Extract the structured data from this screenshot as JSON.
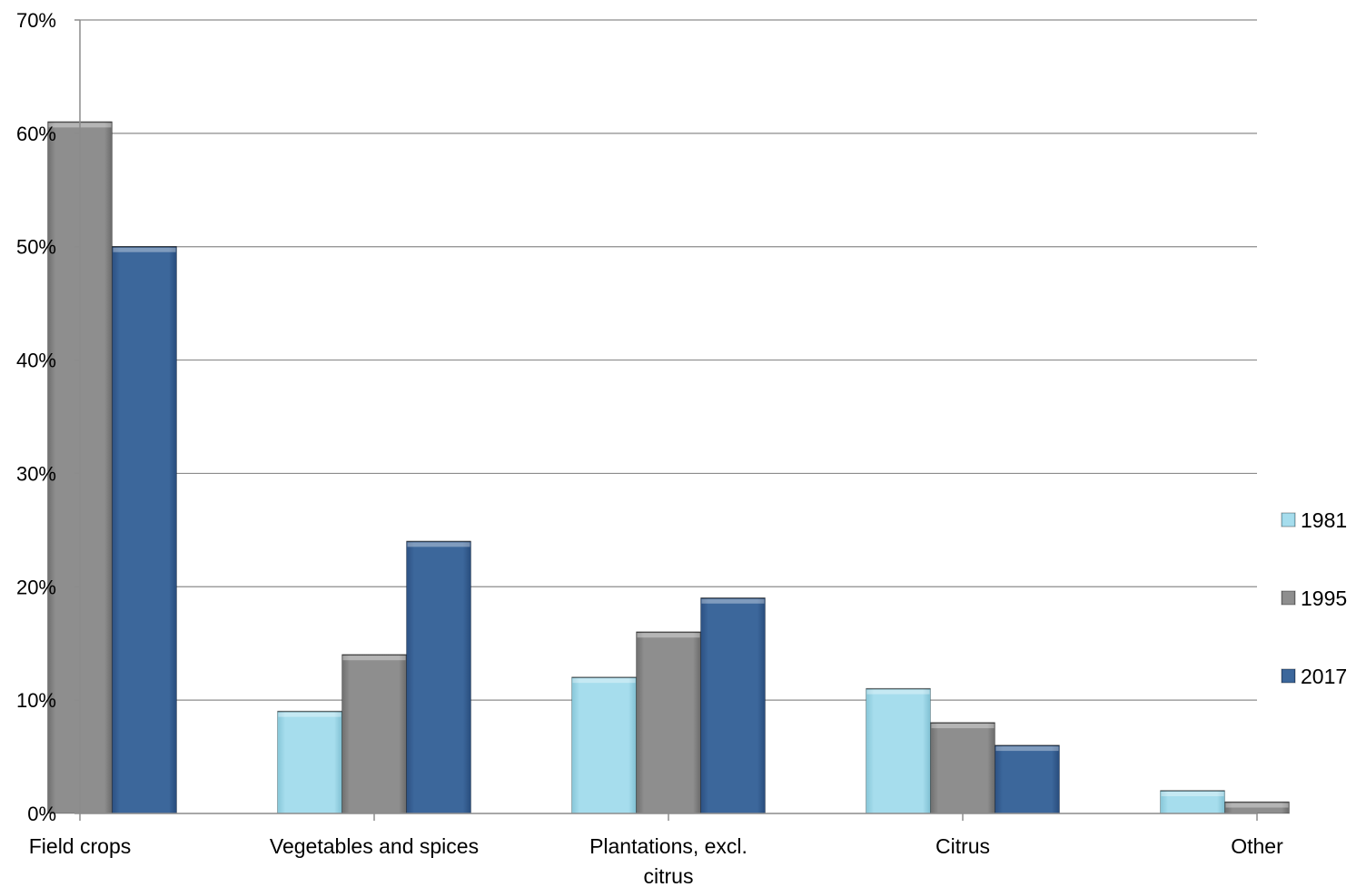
{
  "chart_data": {
    "type": "bar",
    "title": "",
    "xlabel": "",
    "ylabel": "",
    "ylim": [
      0,
      70
    ],
    "y_ticks": [
      0,
      10,
      20,
      30,
      40,
      50,
      60,
      70
    ],
    "y_tick_labels": [
      "0%",
      "10%",
      "20%",
      "30%",
      "40%",
      "50%",
      "60%",
      "70%"
    ],
    "grid": true,
    "legend_position": "right",
    "categories": [
      "Field crops",
      "Vegetables and spices",
      "Plantations, excl. citrus",
      "Citrus",
      "Other"
    ],
    "category_label_lines": [
      [
        "Field crops"
      ],
      [
        "Vegetables and spices"
      ],
      [
        "Plantations, excl.",
        "citrus"
      ],
      [
        "Citrus"
      ],
      [
        "Other"
      ]
    ],
    "series": [
      {
        "name": "1981",
        "color": "#9bd8e8",
        "values": [
          null,
          9,
          12,
          11,
          2
        ]
      },
      {
        "name": "1995",
        "color": "#8a8a8a",
        "values": [
          61,
          14,
          16,
          8,
          1
        ]
      },
      {
        "name": "2017",
        "color": "#3a6598",
        "values": [
          50,
          24,
          19,
          6,
          null
        ]
      }
    ]
  }
}
